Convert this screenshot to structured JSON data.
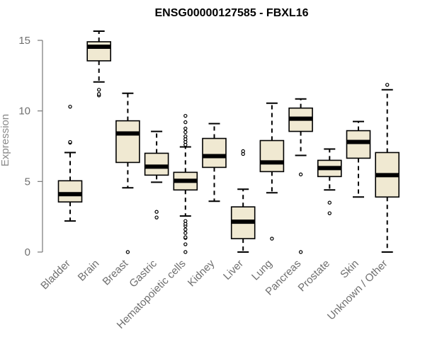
{
  "chart_data": {
    "type": "boxplot",
    "title": "ENSG00000127585 - FBXL16",
    "xlabel": "",
    "ylabel": "Expression",
    "ylim": [
      0,
      15
    ],
    "yticks": [
      0,
      5,
      10,
      15
    ],
    "grid": false,
    "box_fill": "#f0e9d2",
    "box_stroke": "#000000",
    "median_color": "#000000",
    "axis_color": "#777777",
    "label_color": "#6f6f6f",
    "categories": [
      "Bladder",
      "Brain",
      "Breast",
      "Gastric",
      "Hematopoietic cells",
      "Kidney",
      "Liver",
      "Lung",
      "Pancreas",
      "Prostate",
      "Skin",
      "Unknown / Other"
    ],
    "boxes": [
      {
        "label": "Bladder",
        "q1": 3.55,
        "median": 4.1,
        "q3": 5.05,
        "whisker_low": 2.2,
        "whisker_high": 7.05,
        "outliers": [
          7.75,
          7.8,
          10.3
        ]
      },
      {
        "label": "Brain",
        "q1": 13.55,
        "median": 14.55,
        "q3": 14.9,
        "whisker_low": 12.05,
        "whisker_high": 15.65,
        "outliers": [
          11.1,
          11.2,
          11.5
        ]
      },
      {
        "label": "Breast",
        "q1": 6.35,
        "median": 8.4,
        "q3": 9.3,
        "whisker_low": 4.55,
        "whisker_high": 11.25,
        "outliers": [
          0.0
        ]
      },
      {
        "label": "Gastric",
        "q1": 5.45,
        "median": 6.05,
        "q3": 7.0,
        "whisker_low": 4.95,
        "whisker_high": 8.55,
        "outliers": [
          2.45,
          2.85
        ]
      },
      {
        "label": "Hematopoietic cells",
        "q1": 4.4,
        "median": 5.05,
        "q3": 5.65,
        "whisker_low": 2.55,
        "whisker_high": 7.45,
        "outliers": [
          0.0,
          0.55,
          1.0,
          1.05,
          1.35,
          1.6,
          1.85,
          2.0,
          2.2,
          7.6,
          7.8,
          8.0,
          8.2,
          8.5,
          8.75,
          9.2,
          9.65
        ]
      },
      {
        "label": "Kidney",
        "q1": 6.0,
        "median": 6.8,
        "q3": 8.05,
        "whisker_low": 3.6,
        "whisker_high": 9.1,
        "outliers": []
      },
      {
        "label": "Liver",
        "q1": 0.95,
        "median": 2.15,
        "q3": 3.2,
        "whisker_low": 0.0,
        "whisker_high": 4.45,
        "outliers": [
          6.95,
          7.15
        ]
      },
      {
        "label": "Lung",
        "q1": 5.7,
        "median": 6.35,
        "q3": 7.9,
        "whisker_low": 4.2,
        "whisker_high": 10.55,
        "outliers": [
          0.95
        ]
      },
      {
        "label": "Pancreas",
        "q1": 8.55,
        "median": 9.45,
        "q3": 10.2,
        "whisker_low": 6.85,
        "whisker_high": 10.85,
        "outliers": [
          0.0,
          5.5
        ]
      },
      {
        "label": "Prostate",
        "q1": 5.35,
        "median": 5.95,
        "q3": 6.5,
        "whisker_low": 4.4,
        "whisker_high": 7.3,
        "outliers": [
          2.75,
          3.5
        ]
      },
      {
        "label": "Skin",
        "q1": 6.65,
        "median": 7.8,
        "q3": 8.6,
        "whisker_low": 3.9,
        "whisker_high": 9.25,
        "outliers": []
      },
      {
        "label": "Unknown / Other",
        "q1": 3.9,
        "median": 5.45,
        "q3": 7.05,
        "whisker_low": 0.0,
        "whisker_high": 11.5,
        "outliers": [
          11.85
        ]
      }
    ]
  }
}
